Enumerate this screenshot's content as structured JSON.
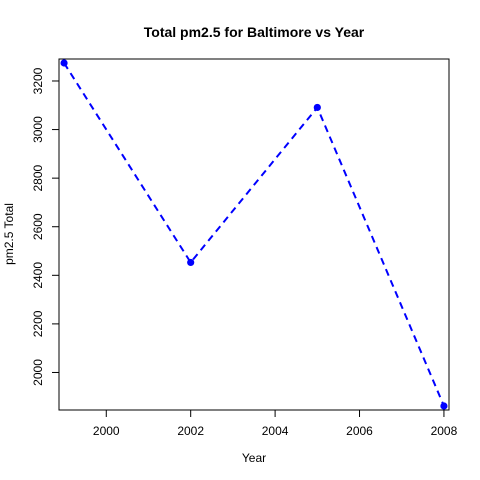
{
  "chart_data": {
    "type": "line",
    "title": "Total pm2.5 for Baltimore vs Year",
    "xlabel": "Year",
    "ylabel": "pm2.5 Total",
    "x": [
      1999,
      2002,
      2005,
      2008
    ],
    "series": [
      {
        "values": [
          3274,
          2453,
          3091,
          1862
        ]
      }
    ],
    "x_ticks": [
      2000,
      2002,
      2004,
      2006,
      2008
    ],
    "y_ticks": [
      2000,
      2200,
      2400,
      2600,
      2800,
      3000,
      3200
    ],
    "xlim": [
      1998.88,
      2008.12
    ],
    "ylim": [
      1845.5,
      3290.5
    ],
    "line_style": "dashed",
    "line_color": "#0000ff",
    "point_color": "#0000ff",
    "grid": false,
    "legend": "none"
  }
}
